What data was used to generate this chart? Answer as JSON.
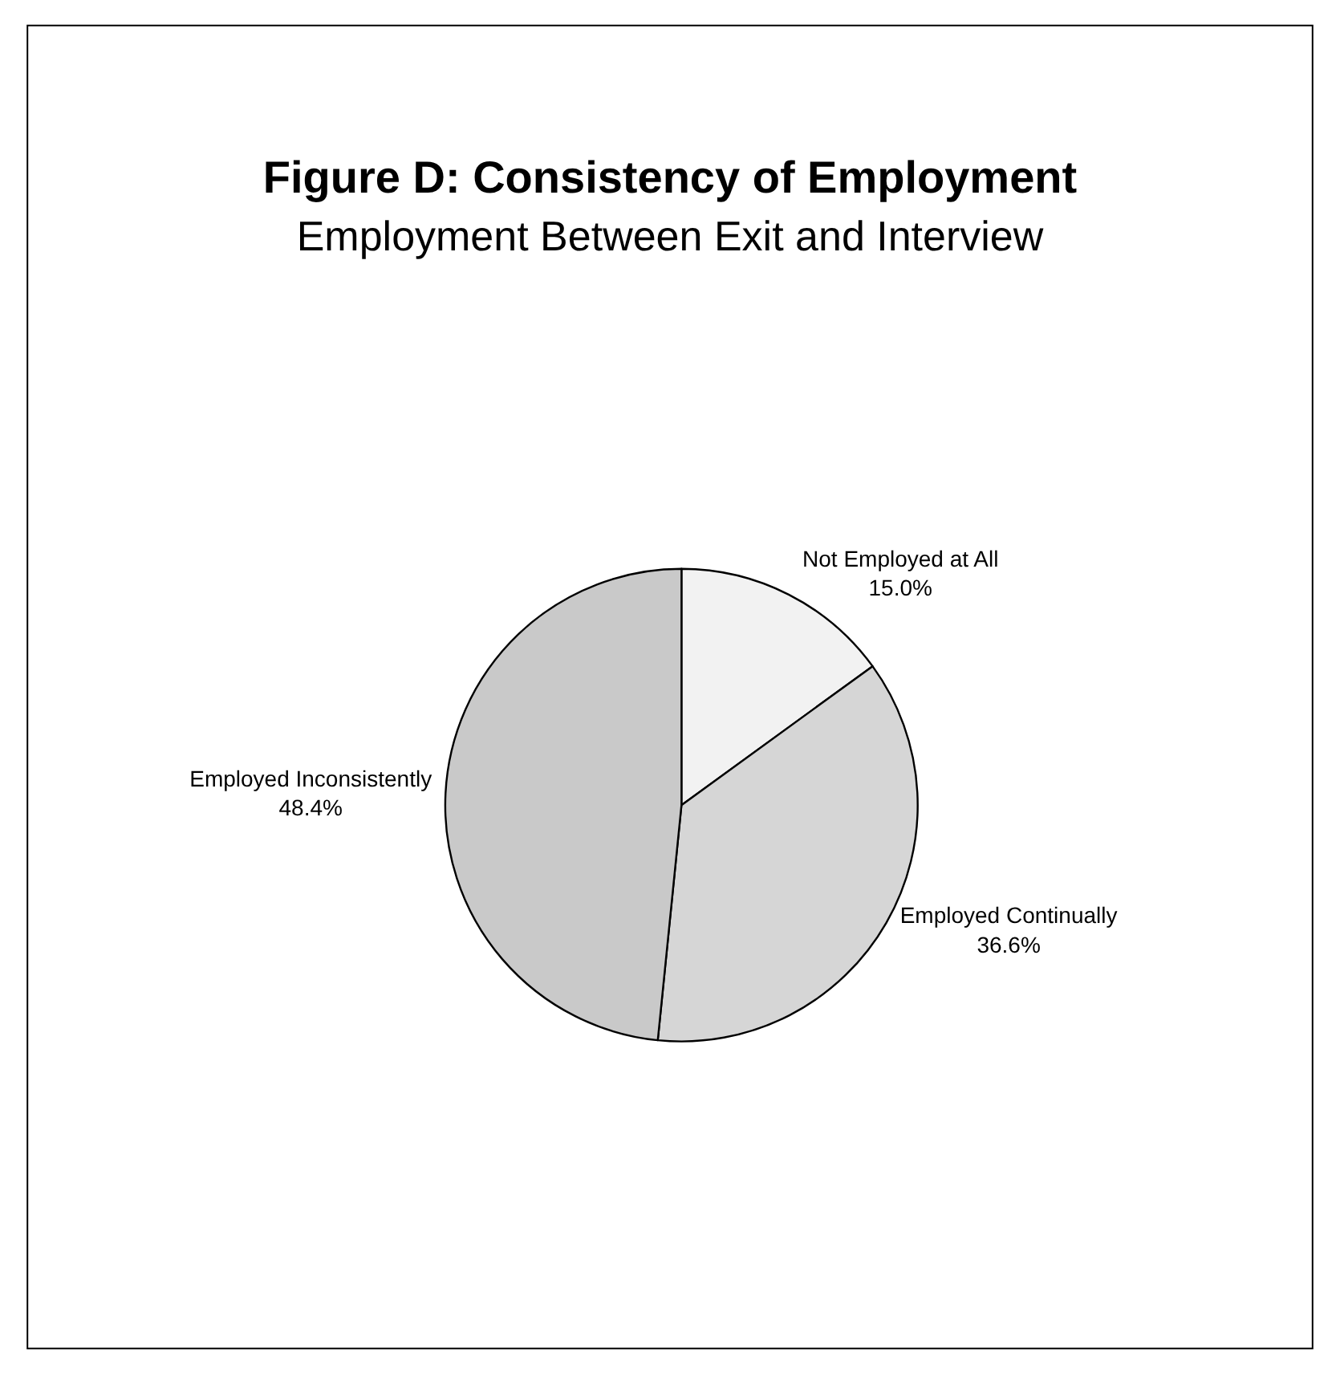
{
  "chart_data": {
    "type": "pie",
    "title": "Figure D: Consistency of Employment",
    "subtitle": "Employment Between Exit and Interview",
    "categories": [
      "Not Employed at All",
      "Employed Continually",
      "Employed Inconsistently"
    ],
    "values": [
      15.0,
      36.6,
      48.4
    ],
    "value_labels": [
      "15.0%",
      "36.6%",
      "48.4%"
    ],
    "colors": [
      "#f2f2f2",
      "#d6d6d6",
      "#c9c9c9"
    ],
    "legend": false
  }
}
